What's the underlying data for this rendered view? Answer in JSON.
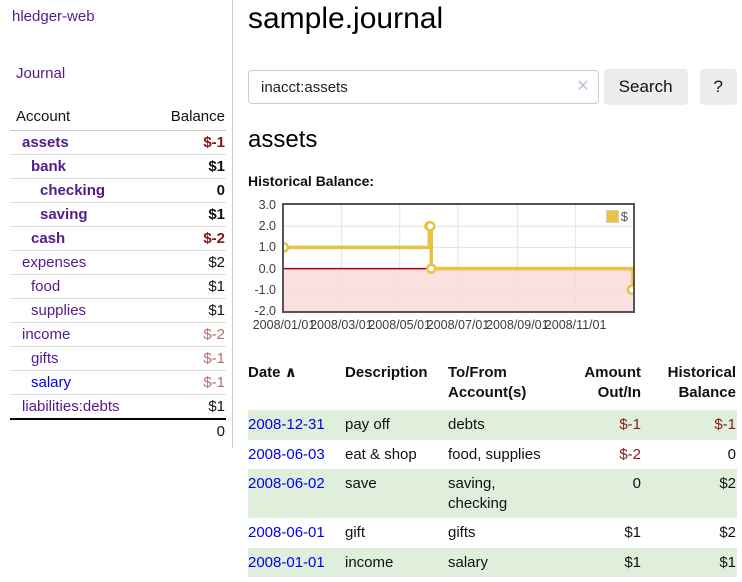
{
  "sidebar": {
    "brand": "hledger-web",
    "journal_link": "Journal",
    "accounts_table": {
      "col_account": "Account",
      "col_balance": "Balance",
      "rows": [
        {
          "name": "assets",
          "balance": "$-1",
          "depth": 1,
          "bold": true,
          "balance_style": "neg-strong",
          "link_style": "purple"
        },
        {
          "name": "bank",
          "balance": "$1",
          "depth": 2,
          "bold": true,
          "balance_style": "pos",
          "link_style": "purple"
        },
        {
          "name": "checking",
          "balance": "0",
          "depth": 3,
          "bold": true,
          "balance_style": "pos",
          "link_style": "purple"
        },
        {
          "name": "saving",
          "balance": "$1",
          "depth": 3,
          "bold": true,
          "balance_style": "pos",
          "link_style": "purple"
        },
        {
          "name": "cash",
          "balance": "$-2",
          "depth": 2,
          "bold": true,
          "balance_style": "neg-strong",
          "link_style": "purple"
        },
        {
          "name": "expenses",
          "balance": "$2",
          "depth": 1,
          "bold": false,
          "balance_style": "pos",
          "link_style": "purple"
        },
        {
          "name": "food",
          "balance": "$1",
          "depth": 2,
          "bold": false,
          "balance_style": "pos",
          "link_style": "purple"
        },
        {
          "name": "supplies",
          "balance": "$1",
          "depth": 2,
          "bold": false,
          "balance_style": "pos",
          "link_style": "purple"
        },
        {
          "name": "income",
          "balance": "$-2",
          "depth": 1,
          "bold": false,
          "balance_style": "neg-weak",
          "link_style": "purple"
        },
        {
          "name": "gifts",
          "balance": "$-1",
          "depth": 2,
          "bold": false,
          "balance_style": "neg-weak",
          "link_style": "purple"
        },
        {
          "name": "salary",
          "balance": "$-1",
          "depth": 2,
          "bold": false,
          "balance_style": "neg-weak",
          "link_style": "blue"
        },
        {
          "name": "liabilities:debts",
          "balance": "$1",
          "depth": 1,
          "bold": false,
          "balance_style": "pos",
          "link_style": "purple"
        }
      ],
      "total": "0"
    }
  },
  "header": {
    "title": "sample.journal"
  },
  "search": {
    "query": "inacct:assets",
    "clear_icon": "✕",
    "search_label": "Search",
    "help_label": "?"
  },
  "account_page": {
    "heading": "assets",
    "chart_label": "Historical Balance:"
  },
  "chart_data": {
    "type": "line",
    "style": "step",
    "title": "Historical Balance",
    "series": [
      {
        "name": "$",
        "color": "#e8c240",
        "points": [
          {
            "date": "2008-01-01",
            "value": 1
          },
          {
            "date": "2008-06-01",
            "value": 2
          },
          {
            "date": "2008-06-02",
            "value": 2
          },
          {
            "date": "2008-06-03",
            "value": 0
          },
          {
            "date": "2008-12-31",
            "value": -1
          }
        ]
      }
    ],
    "xlim": [
      "2008-01-01",
      "2008-12-31"
    ],
    "ylim": [
      -2,
      3
    ],
    "ytick_labels": [
      "3.0",
      "2.0",
      "1.0",
      "0.0",
      "-1.0",
      "-2.0"
    ],
    "yticks": [
      3,
      2,
      1,
      0,
      -1,
      -2
    ],
    "xticks": [
      "2008-01-01",
      "2008-03-01",
      "2008-05-01",
      "2008-07-01",
      "2008-09-01",
      "2008-11-01"
    ],
    "xtick_labels": [
      "2008/01/01",
      "2008/03/01",
      "2008/05/01",
      "2008/07/01",
      "2008/09/01",
      "2008/11/01"
    ],
    "legend": [
      {
        "label": "$",
        "color": "#edc240"
      }
    ],
    "legend_position": "top-right",
    "grid": true,
    "grid_color": "#e3e3e3",
    "negative_region_color": "#fce0e0",
    "zero_line_color": "#a80000",
    "border_color": "#545454"
  },
  "register_table": {
    "columns": {
      "date": "Date",
      "sort_arrow": "∧",
      "description": "Description",
      "accounts": "To/From Account(s)",
      "amount": "Amount Out/In",
      "balance": "Historical Balance"
    },
    "rows": [
      {
        "date": "2008-12-31",
        "description": "pay off",
        "accounts": "debts",
        "amount": "$-1",
        "amount_negative": true,
        "balance": "$-1",
        "balance_negative": true,
        "highlight": true
      },
      {
        "date": "2008-06-03",
        "description": "eat & shop",
        "accounts": "food, supplies",
        "amount": "$-2",
        "amount_negative": true,
        "balance": "0",
        "balance_negative": false,
        "highlight": false
      },
      {
        "date": "2008-06-02",
        "description": "save",
        "accounts": "saving, checking",
        "amount": "0",
        "amount_negative": false,
        "balance": "$2",
        "balance_negative": false,
        "highlight": true
      },
      {
        "date": "2008-06-01",
        "description": "gift",
        "accounts": "gifts",
        "amount": "$1",
        "amount_negative": false,
        "balance": "$2",
        "balance_negative": false,
        "highlight": false
      },
      {
        "date": "2008-01-01",
        "description": "income",
        "accounts": "salary",
        "amount": "$1",
        "amount_negative": false,
        "balance": "$1",
        "balance_negative": false,
        "highlight": true
      }
    ]
  }
}
